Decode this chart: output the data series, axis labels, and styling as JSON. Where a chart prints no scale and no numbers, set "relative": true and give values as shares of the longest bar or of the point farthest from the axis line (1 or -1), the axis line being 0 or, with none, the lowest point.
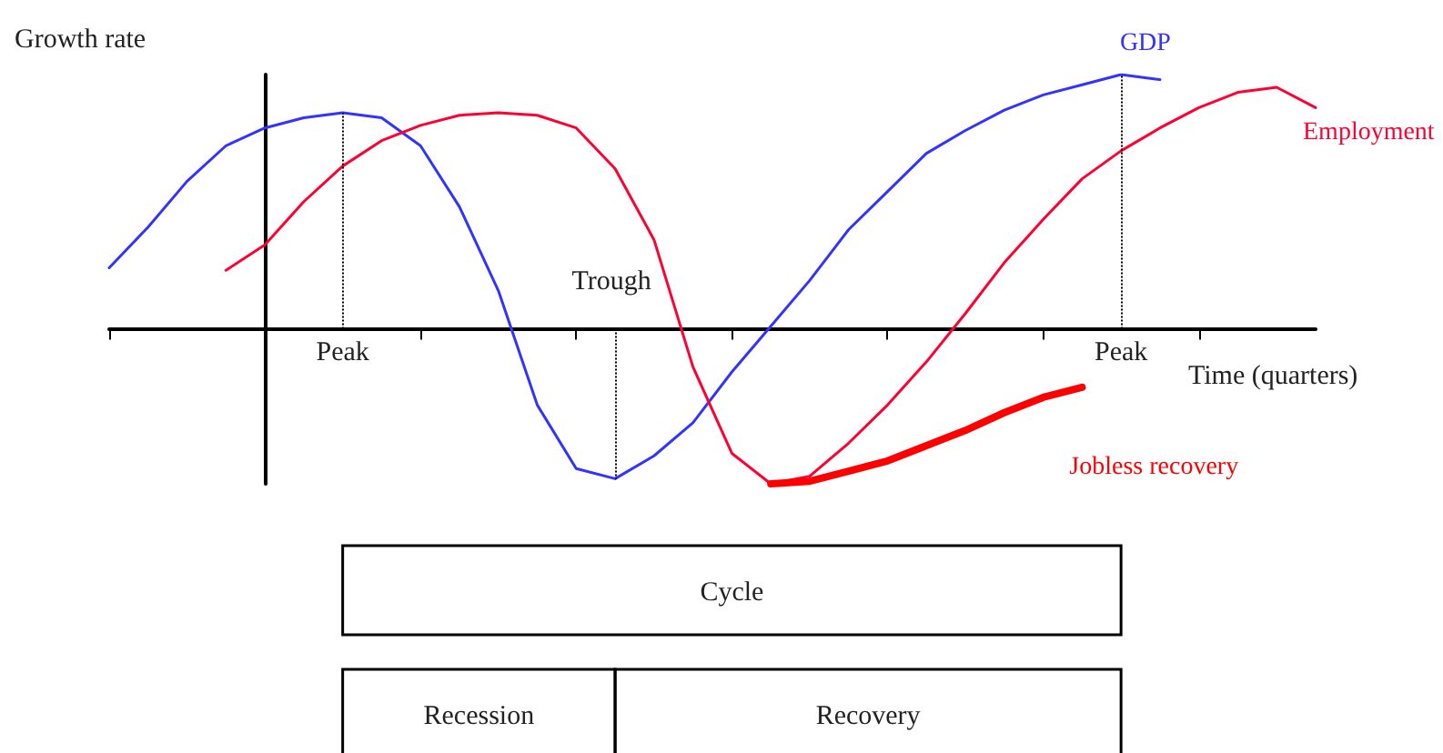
{
  "chart_data": {
    "type": "line",
    "relative": true,
    "xlabel": "Time (quarters)",
    "ylabel": "Growth rate",
    "categories": [
      null,
      null,
      null,
      null,
      null,
      null,
      null,
      null,
      null,
      null,
      null,
      null,
      null,
      null,
      null,
      null,
      null,
      null,
      null,
      null,
      null,
      null,
      null,
      null,
      null,
      null,
      null,
      null,
      null,
      null,
      null,
      null
    ],
    "grid": false,
    "legend": false,
    "marker": "none",
    "line_style": "solid",
    "series": [
      {
        "name": "GDP",
        "color": "#3333ff",
        "values": [
          0.24,
          0.4,
          0.58,
          0.72,
          0.79,
          0.83,
          0.85,
          0.83,
          0.72,
          0.48,
          0.15,
          -0.3,
          -0.55,
          -0.59,
          -0.5,
          -0.37,
          -0.17,
          0.01,
          0.19,
          0.39,
          0.54,
          0.69,
          0.78,
          0.86,
          0.92,
          0.96,
          1.0,
          0.98,
          null,
          null,
          null,
          null
        ]
      },
      {
        "name": "Employment",
        "color": "#ff0033",
        "values": [
          null,
          null,
          null,
          0.23,
          0.33,
          0.5,
          0.64,
          0.74,
          0.8,
          0.84,
          0.85,
          0.84,
          0.79,
          0.63,
          0.35,
          -0.15,
          -0.49,
          -0.61,
          -0.58,
          -0.45,
          -0.3,
          -0.13,
          0.06,
          0.26,
          0.43,
          0.59,
          0.7,
          0.79,
          0.87,
          0.93,
          0.95,
          0.87
        ]
      },
      {
        "name": "Jobless recovery",
        "color": "#ff0000",
        "values": [
          null,
          null,
          null,
          null,
          null,
          null,
          null,
          null,
          null,
          null,
          null,
          null,
          null,
          null,
          null,
          null,
          null,
          -0.61,
          -0.6,
          -0.56,
          -0.52,
          -0.46,
          -0.4,
          -0.33,
          -0.27,
          -0.23,
          null,
          null,
          null,
          null,
          null,
          null
        ]
      }
    ],
    "annotations": [
      "Peak",
      "Trough",
      "Peak",
      "Cycle",
      "Recession",
      "Recovery"
    ]
  }
}
